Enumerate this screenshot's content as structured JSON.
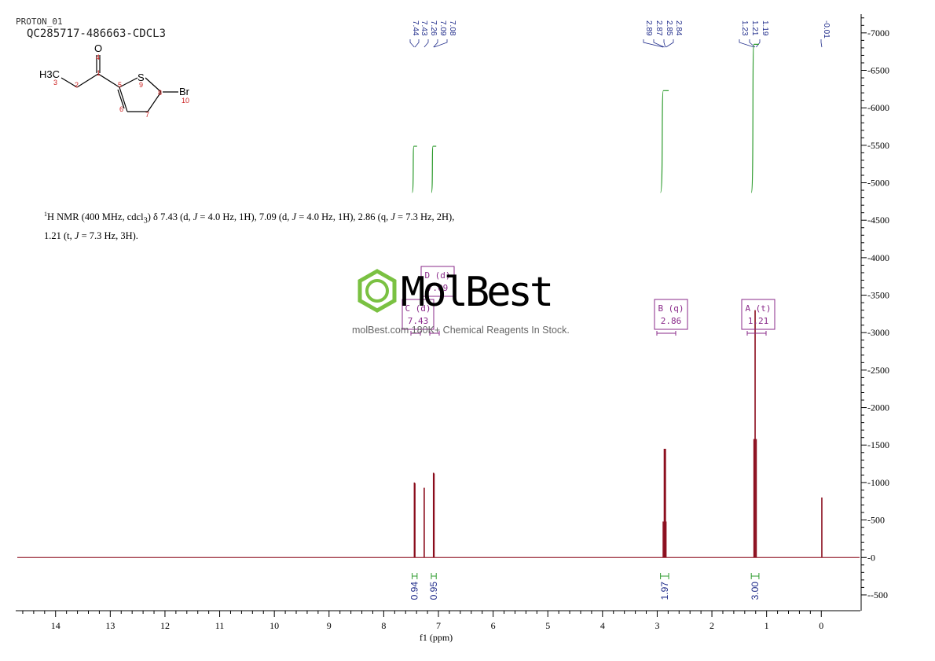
{
  "header": {
    "experiment": "PROTON_01",
    "sample": "QC285717-486663-CDCL3"
  },
  "molecule": {
    "atoms": {
      "h3c": "H3C",
      "o": "O",
      "s": "S",
      "br": "Br"
    },
    "numbers": [
      "1",
      "2",
      "3",
      "4",
      "5",
      "6",
      "7",
      "8",
      "9",
      "10"
    ]
  },
  "summary": {
    "nucleus_sup": "1",
    "text_a": "H NMR (400 MHz, cdcl",
    "sub3": "3",
    "text_b": ") δ 7.43 (d, ",
    "j1": "J",
    "text_c": " = 4.0 Hz, 1H), 7.09 (d, ",
    "j2": "J",
    "text_d": " = 4.0 Hz, 1H), 2.86 (q, ",
    "j3": "J",
    "text_e": " = 7.3 Hz, 2H),",
    "line2_a": "1.21 (t, ",
    "j4": "J",
    "line2_b": " = 7.3 Hz, 3H)."
  },
  "watermark": {
    "brand": "MolBest",
    "tagline": "molBest.com  180K+ Chemical Reagents In Stock."
  },
  "chart_data": {
    "type": "line",
    "xlabel": "f1 (ppm)",
    "x_reversed": true,
    "xlim": [
      14.7,
      -0.7
    ],
    "ylim": [
      -700,
      7250
    ],
    "x_ticks": [
      14,
      13,
      12,
      11,
      10,
      9,
      8,
      7,
      6,
      5,
      4,
      3,
      2,
      1,
      0
    ],
    "y_ticks": [
      7000,
      6500,
      6000,
      5500,
      5000,
      4500,
      4000,
      3500,
      3000,
      2500,
      2000,
      1500,
      1000,
      500,
      0,
      -500
    ],
    "peaks": [
      {
        "ppm": 7.44,
        "height": 1000
      },
      {
        "ppm": 7.43,
        "height": 990
      },
      {
        "ppm": 7.26,
        "height": 930
      },
      {
        "ppm": 7.09,
        "height": 1130
      },
      {
        "ppm": 7.08,
        "height": 1120
      },
      {
        "ppm": 2.89,
        "height": 480
      },
      {
        "ppm": 2.87,
        "height": 1450
      },
      {
        "ppm": 2.85,
        "height": 1450
      },
      {
        "ppm": 2.84,
        "height": 480
      },
      {
        "ppm": 1.23,
        "height": 1580
      },
      {
        "ppm": 1.21,
        "height": 3300
      },
      {
        "ppm": 1.19,
        "height": 1580
      },
      {
        "ppm": -0.01,
        "height": 800
      }
    ],
    "peak_labels": [
      {
        "label": "7.44",
        "ppm": 7.44
      },
      {
        "label": "7.43",
        "ppm": 7.43
      },
      {
        "label": "7.26",
        "ppm": 7.26
      },
      {
        "label": "7.09",
        "ppm": 7.09
      },
      {
        "label": "7.08",
        "ppm": 7.08
      },
      {
        "label": "2.89",
        "ppm": 2.89
      },
      {
        "label": "2.87",
        "ppm": 2.87
      },
      {
        "label": "2.85",
        "ppm": 2.85
      },
      {
        "label": "2.84",
        "ppm": 2.84
      },
      {
        "label": "1.23",
        "ppm": 1.23
      },
      {
        "label": "1.21",
        "ppm": 1.21
      },
      {
        "label": "1.19",
        "ppm": 1.19
      },
      {
        "label": "-0.01",
        "ppm": -0.01
      }
    ],
    "integrals": [
      {
        "from": 7.48,
        "to": 7.39,
        "value": "0.94",
        "rise": 0.05
      },
      {
        "from": 7.13,
        "to": 7.04,
        "value": "0.95",
        "rise": 0.05
      },
      {
        "from": 2.94,
        "to": 2.79,
        "value": "1.97",
        "rise": 0.11
      },
      {
        "from": 1.28,
        "to": 1.14,
        "value": "3.00",
        "rise": 0.16
      }
    ],
    "multiplets": [
      {
        "id": "D",
        "type": "d",
        "shift": "7.09"
      },
      {
        "id": "C",
        "type": "d",
        "shift": "7.43"
      },
      {
        "id": "B",
        "type": "q",
        "shift": "2.86"
      },
      {
        "id": "A",
        "type": "t",
        "shift": "1.21"
      }
    ]
  },
  "colors": {
    "spectrum": "#8b0d1d",
    "integral": "#2e9b2e",
    "peak_label": "#1f2b8a",
    "multiplet": "#8a2a8a",
    "logo_green": "#7ac142"
  }
}
